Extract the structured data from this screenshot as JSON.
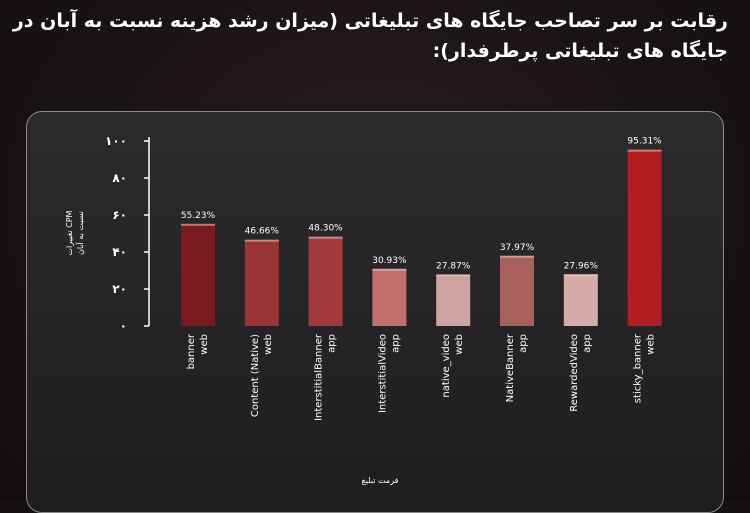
{
  "title": "رقابت بر سر تصاحب جایگاه های تبلیغاتی (میزان رشد هزینه نسبت به آبان در جایگاه های تبلیغاتی پرطرفدار):",
  "chart_data": {
    "type": "bar",
    "categories": [
      [
        "banner",
        "web"
      ],
      [
        "Content (Native)",
        "web"
      ],
      [
        "InterstitialBanner",
        "app"
      ],
      [
        "InterstitialVideo",
        "app"
      ],
      [
        "native_video",
        "web"
      ],
      [
        "NativeBanner",
        "app"
      ],
      [
        "RewardedVideo",
        "app"
      ],
      [
        "sticky_banner",
        "web"
      ]
    ],
    "values": [
      55.23,
      46.66,
      48.3,
      30.93,
      27.87,
      37.97,
      27.96,
      95.31
    ],
    "data_labels": [
      "55.23%",
      "46.66%",
      "48.30%",
      "30.93%",
      "27.87%",
      "37.97%",
      "27.96%",
      "95.31%"
    ],
    "colors": [
      "#7a1a1e",
      "#9a3434",
      "#a23a3c",
      "#c26e6c",
      "#cfa4a0",
      "#a8605e",
      "#d6aca8",
      "#b01e22"
    ],
    "ylim": [
      0,
      100
    ],
    "yticks": [
      "۰",
      "۲۰",
      "۴۰",
      "۶۰",
      "۸۰",
      "۱۰۰"
    ],
    "ylabel": [
      "تغییرات CPM",
      "نسبت به آبان"
    ],
    "xlabel": "فرمت تبلیغ",
    "grid": false
  }
}
